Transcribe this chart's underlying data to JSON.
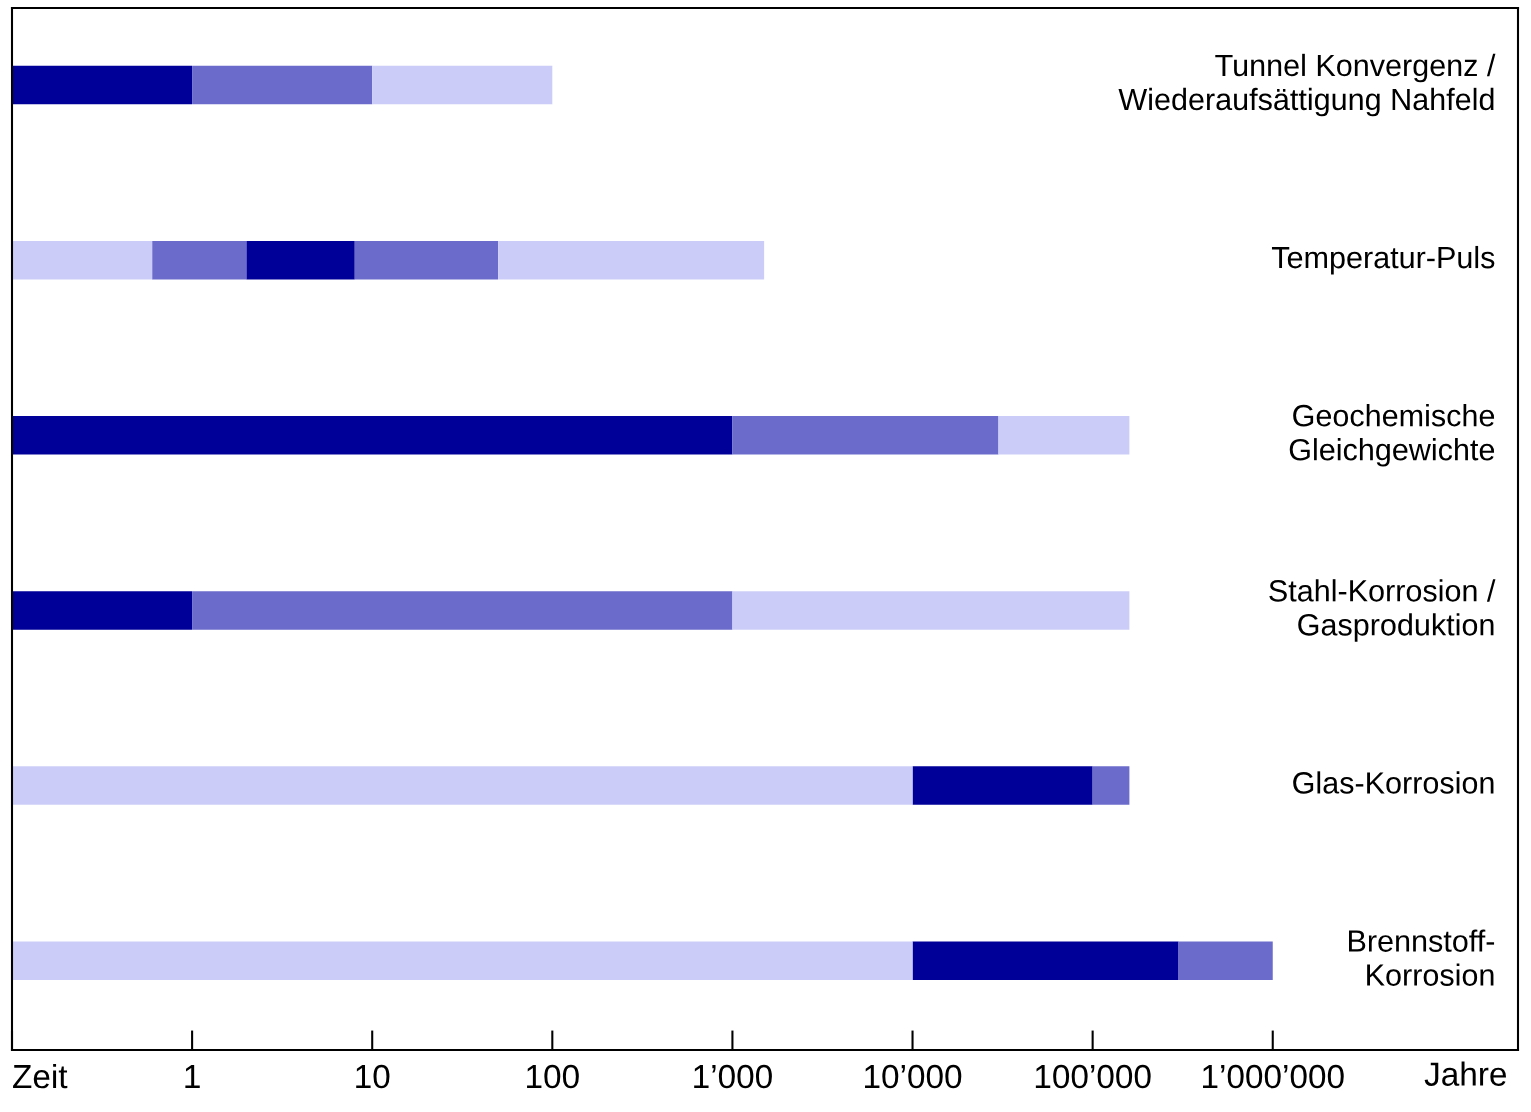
{
  "chart_data": {
    "type": "bar",
    "orientation": "horizontal",
    "categories": [
      "Tunnel Konvergenz /\nWiederaufsättigung Nahfeld",
      "Temperatur-Puls",
      "Geochemische\nGleichgewichte",
      "Stahl-Korrosion /\nGasproduktion",
      "Glas-Korrosion",
      "Brennstoff-\nKorrosion"
    ],
    "series": [
      {
        "color": "#000099",
        "base": [
          0.1,
          2,
          0.1,
          0.1,
          10000,
          10000
        ],
        "values": [
          0.9,
          6,
          999.9,
          0.9,
          90000,
          290000
        ]
      },
      {
        "color": "#6b6bcc",
        "base": [
          1,
          0.6,
          1000,
          1,
          100000,
          300000
        ],
        "values": [
          9,
          1.4,
          29000,
          999,
          60000,
          700000
        ]
      },
      {
        "color": "#ccccf8",
        "base": [
          10,
          0.1,
          30000,
          1000,
          0.1,
          0.1
        ],
        "values": [
          90,
          0.5,
          130000,
          159000,
          9999.9,
          9999.9
        ]
      },
      {
        "color": "#6b6bcc",
        "base": [
          null,
          8,
          null,
          null,
          null,
          null
        ],
        "values": [
          null,
          42,
          null,
          null,
          null,
          null
        ]
      },
      {
        "color": "#ccccf8",
        "base": [
          null,
          50,
          null,
          null,
          null,
          null
        ],
        "values": [
          null,
          1450,
          null,
          null,
          null,
          null
        ]
      }
    ],
    "log": "x",
    "xlim": [
      0.1,
      23000000
    ],
    "xticks": [
      {
        "value": 0.1,
        "label": "Zeit"
      },
      1,
      10,
      100,
      {
        "value": 1000,
        "label": "1’000"
      },
      {
        "value": 10000,
        "label": "10’000"
      },
      {
        "value": 100000,
        "label": "100’000"
      },
      {
        "value": 1000000,
        "label": "1’000’000"
      }
    ],
    "xlabel": "Jahre",
    "grid": false
  }
}
